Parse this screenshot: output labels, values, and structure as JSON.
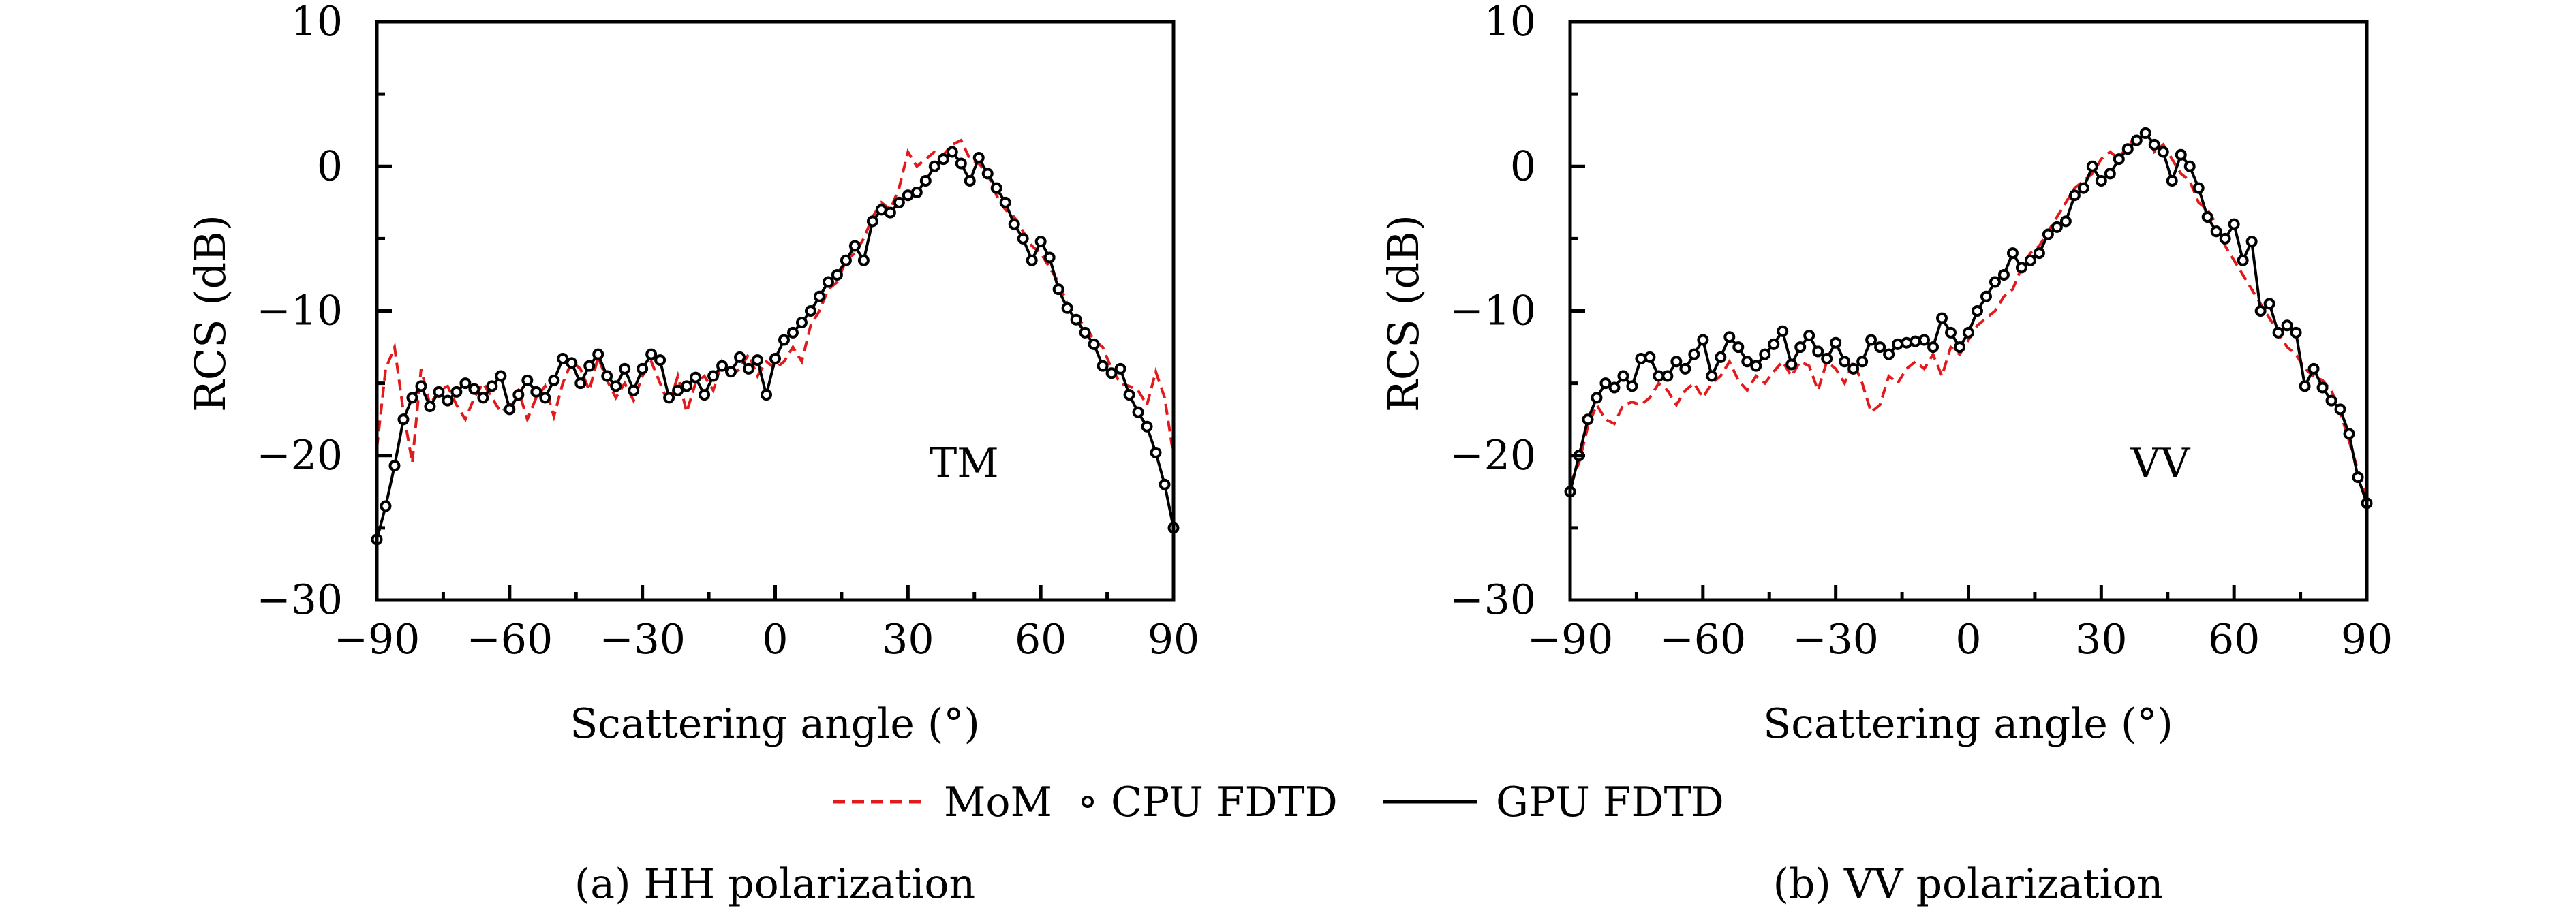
{
  "legend": {
    "items": [
      {
        "label": "MoM",
        "style": "dashed",
        "color": "#e31a1c"
      },
      {
        "label": "CPU FDTD",
        "style": "marker-circle",
        "color": "#000000"
      },
      {
        "label": "GPU FDTD",
        "style": "solid",
        "color": "#000000"
      }
    ],
    "placement": "bottom-center"
  },
  "chart_data": [
    {
      "type": "line",
      "caption": "(a) HH polarization",
      "annotation": "TM",
      "xlabel": "Scattering angle (°)",
      "ylabel": "RCS (dB)",
      "xlim": [
        -90,
        90
      ],
      "ylim": [
        -30,
        10
      ],
      "xticks": [
        -90,
        -60,
        -30,
        0,
        30,
        60,
        90
      ],
      "xtick_labels": [
        "−90",
        "−60",
        "−30",
        "0",
        "30",
        "60",
        "90"
      ],
      "yticks": [
        10,
        0,
        -10,
        -20,
        -30
      ],
      "ytick_labels": [
        "10",
        "0",
        "−10",
        "−20",
        "−30"
      ],
      "grid": false,
      "x_step": 2,
      "series": [
        {
          "name": "MoM",
          "values": [
            -19.5,
            -14.0,
            -12.5,
            -17.0,
            -20.5,
            -14.0,
            -16.5,
            -15.5,
            -15.2,
            -16.5,
            -17.5,
            -16.0,
            -15.0,
            -16.0,
            -17.0,
            -16.5,
            -15.5,
            -17.5,
            -16.0,
            -15.2,
            -17.3,
            -15.0,
            -13.5,
            -14.0,
            -15.5,
            -13.2,
            -14.8,
            -16.0,
            -15.0,
            -16.2,
            -14.5,
            -13.5,
            -15.0,
            -16.5,
            -14.5,
            -17.0,
            -15.0,
            -14.5,
            -15.5,
            -13.5,
            -14.5,
            -14.0,
            -13.0,
            -14.5,
            -13.5,
            -14.0,
            -13.5,
            -12.5,
            -13.5,
            -11.0,
            -10.0,
            -8.5,
            -8.0,
            -6.5,
            -6.0,
            -5.0,
            -3.5,
            -2.5,
            -3.0,
            -1.5,
            1.0,
            0.0,
            0.5,
            1.0,
            0.8,
            1.5,
            1.8,
            0.5,
            0.2,
            -0.5,
            -2.0,
            -3.0,
            -3.5,
            -4.5,
            -5.5,
            -6.0,
            -7.0,
            -8.0,
            -9.5,
            -10.5,
            -11.0,
            -12.0,
            -12.5,
            -14.0,
            -15.0,
            -15.2,
            -15.5,
            -16.5,
            -14.2,
            -16.0,
            -20.0
          ]
        },
        {
          "name": "CPU FDTD",
          "values": [
            -25.8,
            -23.5,
            -20.7,
            -17.5,
            -16.0,
            -15.2,
            -16.6,
            -15.6,
            -16.2,
            -15.6,
            -15.0,
            -15.4,
            -16.0,
            -15.2,
            -14.5,
            -16.8,
            -15.8,
            -14.8,
            -15.6,
            -16.0,
            -14.8,
            -13.3,
            -13.6,
            -15.0,
            -13.8,
            -13.0,
            -14.5,
            -15.2,
            -14.0,
            -15.5,
            -14.0,
            -13.0,
            -13.4,
            -16.0,
            -15.5,
            -15.2,
            -14.6,
            -15.8,
            -14.5,
            -13.8,
            -14.2,
            -13.2,
            -14.0,
            -13.4,
            -15.8,
            -13.3,
            -12.0,
            -11.5,
            -10.8,
            -10.0,
            -9.0,
            -8.0,
            -7.5,
            -6.5,
            -5.5,
            -6.5,
            -3.8,
            -3.0,
            -3.2,
            -2.5,
            -2.0,
            -1.8,
            -1.0,
            0.0,
            0.5,
            1.0,
            0.2,
            -1.0,
            0.6,
            -0.5,
            -1.5,
            -2.5,
            -4.0,
            -5.0,
            -6.5,
            -5.2,
            -6.3,
            -8.5,
            -9.8,
            -10.6,
            -11.5,
            -12.3,
            -13.8,
            -14.3,
            -14.0,
            -15.8,
            -17.0,
            -18.0,
            -19.8,
            -22.0,
            -25.0
          ]
        },
        {
          "name": "GPU FDTD",
          "values": [
            -25.8,
            -23.5,
            -20.7,
            -17.5,
            -16.0,
            -15.2,
            -16.6,
            -15.6,
            -16.2,
            -15.6,
            -15.0,
            -15.4,
            -16.0,
            -15.2,
            -14.5,
            -16.8,
            -15.8,
            -14.8,
            -15.6,
            -16.0,
            -14.8,
            -13.3,
            -13.6,
            -15.0,
            -13.8,
            -13.0,
            -14.5,
            -15.2,
            -14.0,
            -15.5,
            -14.0,
            -13.0,
            -13.4,
            -16.0,
            -15.5,
            -15.2,
            -14.6,
            -15.8,
            -14.5,
            -13.8,
            -14.2,
            -13.2,
            -14.0,
            -13.4,
            -15.8,
            -13.3,
            -12.0,
            -11.5,
            -10.8,
            -10.0,
            -9.0,
            -8.0,
            -7.5,
            -6.5,
            -5.5,
            -6.5,
            -3.8,
            -3.0,
            -3.2,
            -2.5,
            -2.0,
            -1.8,
            -1.0,
            0.0,
            0.5,
            1.0,
            0.2,
            -1.0,
            0.6,
            -0.5,
            -1.5,
            -2.5,
            -4.0,
            -5.0,
            -6.5,
            -5.2,
            -6.3,
            -8.5,
            -9.8,
            -10.6,
            -11.5,
            -12.3,
            -13.8,
            -14.3,
            -14.0,
            -15.8,
            -17.0,
            -18.0,
            -19.8,
            -22.0,
            -25.0
          ]
        }
      ]
    },
    {
      "type": "line",
      "caption": "(b) VV polarization",
      "annotation": "VV",
      "xlabel": "Scattering angle (°)",
      "ylabel": "RCS (dB)",
      "xlim": [
        -90,
        90
      ],
      "ylim": [
        -30,
        10
      ],
      "xticks": [
        -90,
        -60,
        -30,
        0,
        30,
        60,
        90
      ],
      "xtick_labels": [
        "−90",
        "−60",
        "−30",
        "0",
        "30",
        "60",
        "90"
      ],
      "yticks": [
        10,
        0,
        -10,
        -20,
        -30
      ],
      "ytick_labels": [
        "10",
        "0",
        "−10",
        "−20",
        "−30"
      ],
      "grid": false,
      "x_step": 2,
      "series": [
        {
          "name": "MoM",
          "values": [
            -22.0,
            -20.5,
            -18.0,
            -16.5,
            -17.5,
            -17.8,
            -16.5,
            -16.3,
            -16.5,
            -16.0,
            -15.0,
            -15.5,
            -16.5,
            -15.5,
            -15.0,
            -16.0,
            -15.0,
            -14.5,
            -13.5,
            -14.8,
            -15.5,
            -14.5,
            -15.0,
            -14.2,
            -13.5,
            -14.5,
            -13.5,
            -13.8,
            -15.5,
            -13.5,
            -14.0,
            -15.0,
            -13.5,
            -15.0,
            -17.0,
            -16.5,
            -14.5,
            -15.0,
            -14.0,
            -13.5,
            -14.0,
            -13.0,
            -14.5,
            -12.5,
            -13.0,
            -12.0,
            -11.0,
            -10.5,
            -10.0,
            -9.0,
            -8.5,
            -7.0,
            -6.0,
            -5.5,
            -4.5,
            -3.5,
            -2.5,
            -1.5,
            -1.0,
            -0.5,
            0.5,
            1.0,
            0.5,
            1.5,
            2.0,
            2.5,
            1.0,
            1.5,
            0.5,
            -0.5,
            -1.0,
            -2.5,
            -3.0,
            -4.0,
            -5.5,
            -6.5,
            -7.5,
            -8.5,
            -9.5,
            -10.5,
            -11.5,
            -12.5,
            -13.0,
            -14.0,
            -14.5,
            -14.8,
            -15.5,
            -17.0,
            -19.0,
            -21.0,
            -23.0
          ]
        },
        {
          "name": "CPU FDTD",
          "values": [
            -22.5,
            -20.0,
            -17.5,
            -16.0,
            -15.0,
            -15.3,
            -14.5,
            -15.2,
            -13.3,
            -13.2,
            -14.5,
            -14.5,
            -13.5,
            -14.0,
            -13.0,
            -12.0,
            -14.5,
            -13.2,
            -11.8,
            -12.5,
            -13.5,
            -13.8,
            -13.0,
            -12.3,
            -11.4,
            -13.7,
            -12.5,
            -11.7,
            -12.8,
            -13.3,
            -12.2,
            -13.5,
            -14.0,
            -13.5,
            -12.0,
            -12.5,
            -13.0,
            -12.3,
            -12.2,
            -12.1,
            -12.0,
            -12.5,
            -10.5,
            -11.5,
            -12.5,
            -11.5,
            -10.0,
            -9.0,
            -8.0,
            -7.5,
            -6.0,
            -7.0,
            -6.5,
            -6.0,
            -4.7,
            -4.2,
            -3.8,
            -2.0,
            -1.5,
            0.0,
            -1.0,
            -0.5,
            0.5,
            1.2,
            1.8,
            2.3,
            1.5,
            1.0,
            -1.0,
            0.8,
            0.0,
            -1.5,
            -3.5,
            -4.5,
            -5.0,
            -4.0,
            -6.5,
            -5.2,
            -10.0,
            -9.5,
            -11.5,
            -11.0,
            -11.5,
            -15.2,
            -14.0,
            -15.3,
            -16.2,
            -16.8,
            -18.5,
            -21.5,
            -23.3
          ]
        },
        {
          "name": "GPU FDTD",
          "values": [
            -22.5,
            -20.0,
            -17.5,
            -16.0,
            -15.0,
            -15.3,
            -14.5,
            -15.2,
            -13.3,
            -13.2,
            -14.5,
            -14.5,
            -13.5,
            -14.0,
            -13.0,
            -12.0,
            -14.5,
            -13.2,
            -11.8,
            -12.5,
            -13.5,
            -13.8,
            -13.0,
            -12.3,
            -11.4,
            -13.7,
            -12.5,
            -11.7,
            -12.8,
            -13.3,
            -12.2,
            -13.5,
            -14.0,
            -13.5,
            -12.0,
            -12.5,
            -13.0,
            -12.3,
            -12.2,
            -12.1,
            -12.0,
            -12.5,
            -10.5,
            -11.5,
            -12.5,
            -11.5,
            -10.0,
            -9.0,
            -8.0,
            -7.5,
            -6.0,
            -7.0,
            -6.5,
            -6.0,
            -4.7,
            -4.2,
            -3.8,
            -2.0,
            -1.5,
            0.0,
            -1.0,
            -0.5,
            0.5,
            1.2,
            1.8,
            2.3,
            1.5,
            1.0,
            -1.0,
            0.8,
            0.0,
            -1.5,
            -3.5,
            -4.5,
            -5.0,
            -4.0,
            -6.5,
            -5.2,
            -10.0,
            -9.5,
            -11.5,
            -11.0,
            -11.5,
            -15.2,
            -14.0,
            -15.3,
            -16.2,
            -16.8,
            -18.5,
            -21.5,
            -23.3
          ]
        }
      ]
    }
  ]
}
